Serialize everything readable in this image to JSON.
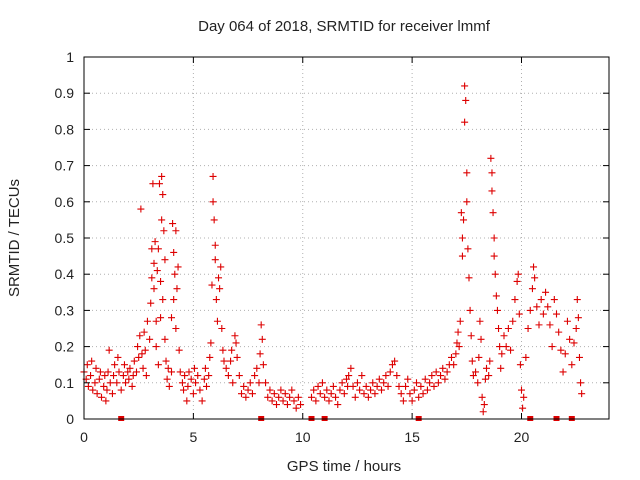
{
  "chart_data": {
    "type": "scatter",
    "title": "Day 064 of 2018, SRMTID for receiver lmmf",
    "xlabel": "GPS time / hours",
    "ylabel": "SRMTID / TECUs",
    "xlim": [
      0,
      24
    ],
    "ylim": [
      0,
      1
    ],
    "x_ticks": [
      0,
      5,
      10,
      15,
      20
    ],
    "x_tick_labels": [
      "0",
      "5",
      "10",
      "15",
      "20"
    ],
    "y_ticks": [
      0,
      0.1,
      0.2,
      0.3,
      0.4,
      0.5,
      0.6,
      0.7,
      0.8,
      0.9,
      1
    ],
    "y_tick_labels": [
      "0",
      "0.1",
      "0.2",
      "0.3",
      "0.4",
      "0.5",
      "0.6",
      "0.7",
      "0.8",
      "0.9",
      "1"
    ],
    "grid": true,
    "marker": "+",
    "color": "#dd0000",
    "series": [
      {
        "name": "SRMTID",
        "points": [
          [
            0.0,
            0.13
          ],
          [
            0.1,
            0.11
          ],
          [
            0.15,
            0.15
          ],
          [
            0.2,
            0.09
          ],
          [
            0.3,
            0.12
          ],
          [
            0.35,
            0.16
          ],
          [
            0.4,
            0.08
          ],
          [
            0.5,
            0.1
          ],
          [
            0.55,
            0.14
          ],
          [
            0.6,
            0.07
          ],
          [
            0.7,
            0.11
          ],
          [
            0.75,
            0.13
          ],
          [
            0.8,
            0.06
          ],
          [
            0.9,
            0.09
          ],
          [
            0.95,
            0.12
          ],
          [
            1.0,
            0.05
          ],
          [
            1.05,
            0.08
          ],
          [
            1.1,
            0.13
          ],
          [
            1.15,
            0.19
          ],
          [
            1.2,
            0.1
          ],
          [
            1.3,
            0.07
          ],
          [
            1.35,
            0.12
          ],
          [
            1.4,
            0.15
          ],
          [
            1.5,
            0.1
          ],
          [
            1.55,
            0.17
          ],
          [
            1.6,
            0.13
          ],
          [
            1.7,
            0.08
          ],
          [
            1.8,
            0.12
          ],
          [
            1.85,
            0.15
          ],
          [
            1.9,
            0.1
          ],
          [
            2.0,
            0.13
          ],
          [
            2.05,
            0.11
          ],
          [
            2.1,
            0.14
          ],
          [
            2.2,
            0.09
          ],
          [
            2.25,
            0.12
          ],
          [
            2.3,
            0.16
          ],
          [
            2.4,
            0.13
          ],
          [
            2.45,
            0.2
          ],
          [
            2.5,
            0.17
          ],
          [
            2.55,
            0.23
          ],
          [
            2.6,
            0.58
          ],
          [
            2.65,
            0.18
          ],
          [
            2.7,
            0.14
          ],
          [
            2.75,
            0.24
          ],
          [
            2.8,
            0.19
          ],
          [
            2.85,
            0.12
          ],
          [
            2.9,
            0.27
          ],
          [
            3.0,
            0.22
          ],
          [
            3.05,
            0.32
          ],
          [
            3.1,
            0.39
          ],
          [
            3.1,
            0.47
          ],
          [
            3.15,
            0.65
          ],
          [
            3.2,
            0.43
          ],
          [
            3.2,
            0.36
          ],
          [
            3.25,
            0.49
          ],
          [
            3.3,
            0.27
          ],
          [
            3.3,
            0.2
          ],
          [
            3.35,
            0.41
          ],
          [
            3.4,
            0.15
          ],
          [
            3.4,
            0.47
          ],
          [
            3.45,
            0.65
          ],
          [
            3.5,
            0.38
          ],
          [
            3.5,
            0.28
          ],
          [
            3.55,
            0.55
          ],
          [
            3.55,
            0.67
          ],
          [
            3.6,
            0.62
          ],
          [
            3.6,
            0.33
          ],
          [
            3.65,
            0.52
          ],
          [
            3.7,
            0.44
          ],
          [
            3.7,
            0.22
          ],
          [
            3.75,
            0.16
          ],
          [
            3.8,
            0.11
          ],
          [
            3.85,
            0.14
          ],
          [
            3.9,
            0.09
          ],
          [
            4.0,
            0.13
          ],
          [
            4.0,
            0.28
          ],
          [
            4.05,
            0.54
          ],
          [
            4.1,
            0.46
          ],
          [
            4.1,
            0.33
          ],
          [
            4.15,
            0.4
          ],
          [
            4.2,
            0.52
          ],
          [
            4.2,
            0.25
          ],
          [
            4.25,
            0.36
          ],
          [
            4.3,
            0.42
          ],
          [
            4.35,
            0.19
          ],
          [
            4.4,
            0.13
          ],
          [
            4.5,
            0.1
          ],
          [
            4.55,
            0.08
          ],
          [
            4.6,
            0.12
          ],
          [
            4.7,
            0.05
          ],
          [
            4.75,
            0.09
          ],
          [
            4.8,
            0.13
          ],
          [
            4.9,
            0.11
          ],
          [
            5.0,
            0.07
          ],
          [
            5.05,
            0.14
          ],
          [
            5.1,
            0.1
          ],
          [
            5.2,
            0.12
          ],
          [
            5.3,
            0.08
          ],
          [
            5.4,
            0.05
          ],
          [
            5.5,
            0.11
          ],
          [
            5.55,
            0.14
          ],
          [
            5.6,
            0.09
          ],
          [
            5.7,
            0.12
          ],
          [
            5.75,
            0.17
          ],
          [
            5.8,
            0.21
          ],
          [
            5.85,
            0.37
          ],
          [
            5.9,
            0.67
          ],
          [
            5.9,
            0.6
          ],
          [
            5.95,
            0.55
          ],
          [
            6.0,
            0.44
          ],
          [
            6.0,
            0.48
          ],
          [
            6.05,
            0.33
          ],
          [
            6.1,
            0.27
          ],
          [
            6.15,
            0.39
          ],
          [
            6.2,
            0.36
          ],
          [
            6.25,
            0.42
          ],
          [
            6.3,
            0.25
          ],
          [
            6.35,
            0.19
          ],
          [
            6.4,
            0.16
          ],
          [
            6.5,
            0.14
          ],
          [
            6.6,
            0.12
          ],
          [
            6.7,
            0.16
          ],
          [
            6.75,
            0.19
          ],
          [
            6.8,
            0.1
          ],
          [
            6.9,
            0.23
          ],
          [
            6.95,
            0.21
          ],
          [
            7.0,
            0.17
          ],
          [
            7.1,
            0.12
          ],
          [
            7.2,
            0.07
          ],
          [
            7.3,
            0.09
          ],
          [
            7.4,
            0.06
          ],
          [
            7.5,
            0.08
          ],
          [
            7.6,
            0.1
          ],
          [
            7.7,
            0.07
          ],
          [
            7.8,
            0.12
          ],
          [
            7.9,
            0.14
          ],
          [
            8.0,
            0.1
          ],
          [
            8.05,
            0.18
          ],
          [
            8.1,
            0.26
          ],
          [
            8.15,
            0.22
          ],
          [
            8.2,
            0.15
          ],
          [
            8.3,
            0.1
          ],
          [
            8.4,
            0.06
          ],
          [
            8.5,
            0.08
          ],
          [
            8.6,
            0.05
          ],
          [
            8.7,
            0.07
          ],
          [
            8.8,
            0.04
          ],
          [
            8.9,
            0.06
          ],
          [
            9.0,
            0.08
          ],
          [
            9.1,
            0.05
          ],
          [
            9.2,
            0.07
          ],
          [
            9.3,
            0.04
          ],
          [
            9.4,
            0.06
          ],
          [
            9.5,
            0.08
          ],
          [
            9.6,
            0.05
          ],
          [
            9.7,
            0.03
          ],
          [
            9.8,
            0.06
          ],
          [
            9.9,
            0.04
          ],
          [
            10.4,
            0.06
          ],
          [
            10.5,
            0.08
          ],
          [
            10.6,
            0.05
          ],
          [
            10.7,
            0.09
          ],
          [
            10.8,
            0.07
          ],
          [
            10.9,
            0.1
          ],
          [
            11.0,
            0.06
          ],
          [
            11.1,
            0.08
          ],
          [
            11.2,
            0.05
          ],
          [
            11.3,
            0.07
          ],
          [
            11.4,
            0.09
          ],
          [
            11.5,
            0.06
          ],
          [
            11.6,
            0.04
          ],
          [
            11.7,
            0.08
          ],
          [
            11.8,
            0.1
          ],
          [
            11.9,
            0.07
          ],
          [
            12.0,
            0.11
          ],
          [
            12.05,
            0.09
          ],
          [
            12.1,
            0.12
          ],
          [
            12.2,
            0.14
          ],
          [
            12.3,
            0.09
          ],
          [
            12.4,
            0.06
          ],
          [
            12.5,
            0.1
          ],
          [
            12.6,
            0.08
          ],
          [
            12.7,
            0.12
          ],
          [
            12.8,
            0.07
          ],
          [
            12.9,
            0.09
          ],
          [
            13.0,
            0.06
          ],
          [
            13.1,
            0.08
          ],
          [
            13.2,
            0.1
          ],
          [
            13.3,
            0.07
          ],
          [
            13.4,
            0.09
          ],
          [
            13.5,
            0.11
          ],
          [
            13.6,
            0.08
          ],
          [
            13.7,
            0.1
          ],
          [
            13.8,
            0.12
          ],
          [
            13.9,
            0.09
          ],
          [
            14.0,
            0.13
          ],
          [
            14.1,
            0.15
          ],
          [
            14.2,
            0.16
          ],
          [
            14.3,
            0.12
          ],
          [
            14.4,
            0.09
          ],
          [
            14.5,
            0.07
          ],
          [
            14.6,
            0.05
          ],
          [
            14.7,
            0.09
          ],
          [
            14.8,
            0.11
          ],
          [
            14.9,
            0.07
          ],
          [
            15.0,
            0.05
          ],
          [
            15.1,
            0.08
          ],
          [
            15.2,
            0.1
          ],
          [
            15.3,
            0.06
          ],
          [
            15.4,
            0.09
          ],
          [
            15.5,
            0.07
          ],
          [
            15.6,
            0.11
          ],
          [
            15.7,
            0.08
          ],
          [
            15.8,
            0.1
          ],
          [
            15.9,
            0.12
          ],
          [
            16.0,
            0.09
          ],
          [
            16.1,
            0.13
          ],
          [
            16.2,
            0.1
          ],
          [
            16.3,
            0.12
          ],
          [
            16.4,
            0.14
          ],
          [
            16.5,
            0.11
          ],
          [
            16.6,
            0.13
          ],
          [
            16.7,
            0.15
          ],
          [
            16.8,
            0.17
          ],
          [
            16.9,
            0.15
          ],
          [
            17.0,
            0.18
          ],
          [
            17.05,
            0.21
          ],
          [
            17.1,
            0.24
          ],
          [
            17.15,
            0.2
          ],
          [
            17.2,
            0.27
          ],
          [
            17.25,
            0.57
          ],
          [
            17.3,
            0.5
          ],
          [
            17.3,
            0.45
          ],
          [
            17.35,
            0.55
          ],
          [
            17.4,
            0.92
          ],
          [
            17.4,
            0.82
          ],
          [
            17.45,
            0.88
          ],
          [
            17.5,
            0.68
          ],
          [
            17.5,
            0.6
          ],
          [
            17.55,
            0.47
          ],
          [
            17.6,
            0.39
          ],
          [
            17.65,
            0.3
          ],
          [
            17.7,
            0.23
          ],
          [
            17.75,
            0.16
          ],
          [
            17.8,
            0.12
          ],
          [
            17.9,
            0.13
          ],
          [
            18.0,
            0.1
          ],
          [
            18.05,
            0.17
          ],
          [
            18.1,
            0.27
          ],
          [
            18.15,
            0.22
          ],
          [
            18.2,
            0.06
          ],
          [
            18.25,
            0.02
          ],
          [
            18.3,
            0.04
          ],
          [
            18.35,
            0.11
          ],
          [
            18.4,
            0.14
          ],
          [
            18.5,
            0.12
          ],
          [
            18.55,
            0.16
          ],
          [
            18.6,
            0.72
          ],
          [
            18.65,
            0.63
          ],
          [
            18.65,
            0.68
          ],
          [
            18.7,
            0.57
          ],
          [
            18.75,
            0.5
          ],
          [
            18.75,
            0.45
          ],
          [
            18.8,
            0.4
          ],
          [
            18.85,
            0.34
          ],
          [
            18.9,
            0.3
          ],
          [
            18.95,
            0.25
          ],
          [
            19.0,
            0.2
          ],
          [
            19.05,
            0.14
          ],
          [
            19.1,
            0.18
          ],
          [
            19.2,
            0.23
          ],
          [
            19.3,
            0.2
          ],
          [
            19.4,
            0.25
          ],
          [
            19.5,
            0.19
          ],
          [
            19.6,
            0.27
          ],
          [
            19.7,
            0.33
          ],
          [
            19.8,
            0.38
          ],
          [
            19.85,
            0.4
          ],
          [
            19.9,
            0.29
          ],
          [
            19.95,
            0.15
          ],
          [
            20.0,
            0.08
          ],
          [
            20.05,
            0.03
          ],
          [
            20.1,
            0.06
          ],
          [
            20.2,
            0.17
          ],
          [
            20.3,
            0.25
          ],
          [
            20.4,
            0.3
          ],
          [
            20.5,
            0.36
          ],
          [
            20.55,
            0.42
          ],
          [
            20.6,
            0.39
          ],
          [
            20.7,
            0.31
          ],
          [
            20.8,
            0.26
          ],
          [
            20.9,
            0.33
          ],
          [
            21.0,
            0.29
          ],
          [
            21.1,
            0.35
          ],
          [
            21.2,
            0.31
          ],
          [
            21.3,
            0.26
          ],
          [
            21.4,
            0.2
          ],
          [
            21.5,
            0.33
          ],
          [
            21.6,
            0.29
          ],
          [
            21.7,
            0.24
          ],
          [
            21.8,
            0.19
          ],
          [
            21.9,
            0.13
          ],
          [
            22.0,
            0.18
          ],
          [
            22.1,
            0.27
          ],
          [
            22.2,
            0.22
          ],
          [
            22.3,
            0.15
          ],
          [
            22.4,
            0.21
          ],
          [
            22.5,
            0.25
          ],
          [
            22.55,
            0.33
          ],
          [
            22.6,
            0.28
          ],
          [
            22.65,
            0.17
          ],
          [
            22.7,
            0.1
          ],
          [
            22.75,
            0.07
          ]
        ]
      }
    ],
    "zero_markers": [
      1.7,
      8.1,
      10.4,
      11.0,
      15.3,
      20.4,
      21.6,
      22.3
    ]
  }
}
